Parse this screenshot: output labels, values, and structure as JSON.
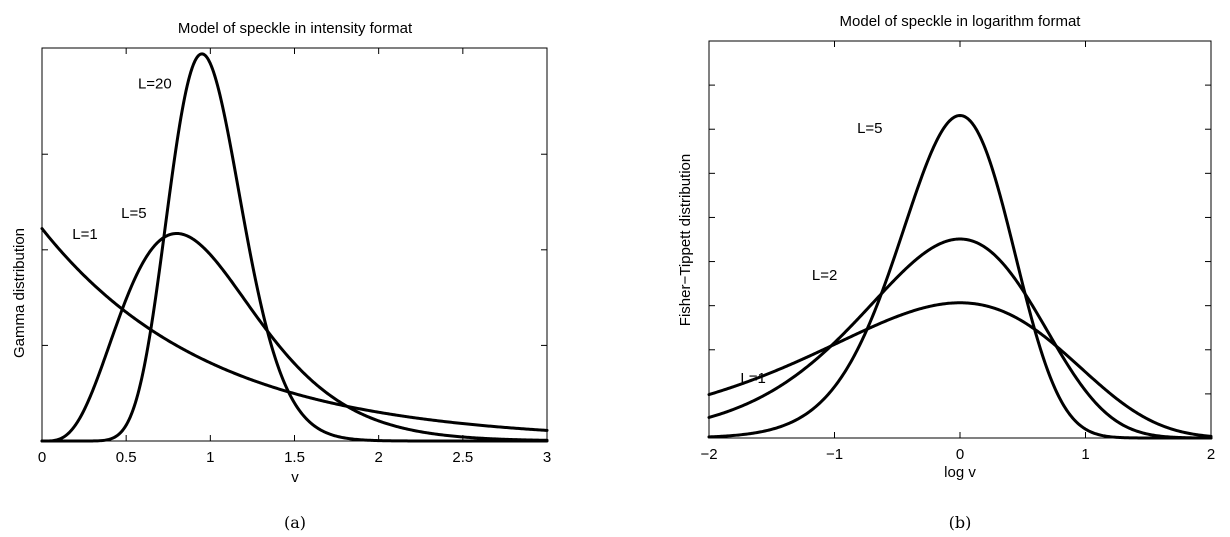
{
  "chart_data": [
    {
      "id": "a",
      "type": "line",
      "title": "Model of speckle in intensity format",
      "xlabel": "v",
      "ylabel": "Gamma distribution",
      "caption": "(a)",
      "xlim": [
        0,
        3
      ],
      "ylim": [
        0,
        1.85
      ],
      "xticks": [
        0,
        0.5,
        1,
        1.5,
        2,
        2.5,
        3
      ],
      "xtick_labels": [
        "0",
        "0.5",
        "1",
        "1.5",
        "2",
        "2.5",
        "3"
      ],
      "yticks": [
        0.45,
        0.9,
        1.35
      ],
      "ytick_labels": [],
      "distribution": "gamma",
      "series": [
        {
          "L": 1
        },
        {
          "L": 5
        },
        {
          "L": 20
        }
      ],
      "annotations": [
        {
          "text": "L=1",
          "x": 0.18,
          "y": 0.95
        },
        {
          "text": "L=5",
          "x": 0.47,
          "y": 1.05
        },
        {
          "text": "L=20",
          "x": 0.57,
          "y": 1.66
        }
      ]
    },
    {
      "id": "b",
      "type": "line",
      "title": "Model of speckle in logarithm format",
      "xlabel": "log v",
      "ylabel": "Fisher−Tippett distribution",
      "caption": "(b)",
      "xlim": [
        -2,
        2
      ],
      "ylim": [
        0,
        1.08
      ],
      "xticks": [
        -2,
        -1,
        0,
        1,
        2
      ],
      "xtick_labels": [
        "−2",
        "−1",
        "0",
        "1",
        "2"
      ],
      "yticks": [
        0.12,
        0.24,
        0.36,
        0.48,
        0.6,
        0.72,
        0.84,
        0.96
      ],
      "ytick_labels": [],
      "distribution": "fisher-tippett",
      "series": [
        {
          "L": 1
        },
        {
          "L": 2
        },
        {
          "L": 5
        }
      ],
      "annotations": [
        {
          "text": "L=5",
          "x": -0.82,
          "y": 0.83
        },
        {
          "text": "L=2",
          "x": -1.18,
          "y": 0.43
        },
        {
          "text": "L=1",
          "x": -1.75,
          "y": 0.15
        }
      ]
    }
  ]
}
